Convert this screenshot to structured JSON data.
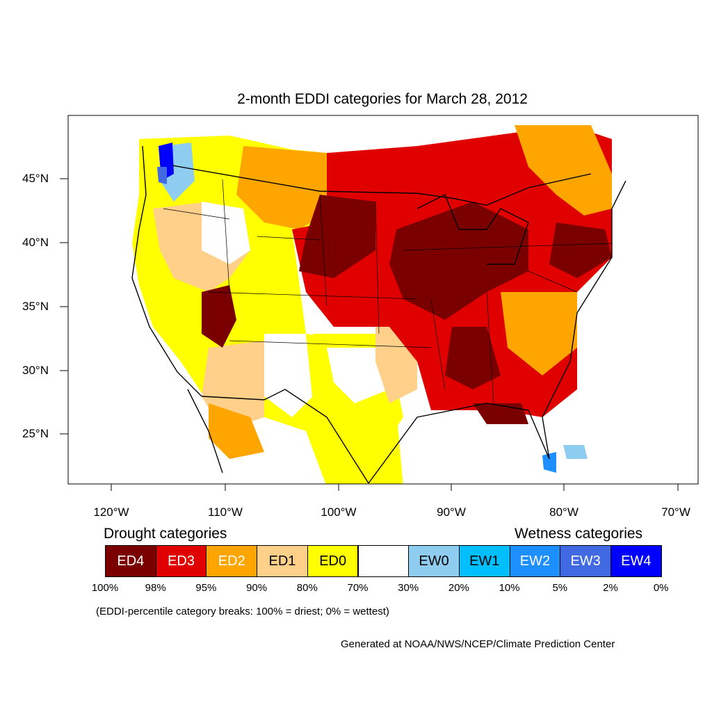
{
  "title": "2-month EDDI categories for March 28, 2012",
  "axes": {
    "y_labels": [
      "45°N",
      "40°N",
      "35°N",
      "30°N",
      "25°N"
    ],
    "x_labels": [
      "120°W",
      "110°W",
      "100°W",
      "90°W",
      "80°W",
      "70°W"
    ]
  },
  "legend": {
    "drought_heading": "Drought categories",
    "wetness_heading": "Wetness categories",
    "categories": [
      {
        "label": "ED4",
        "color": "#7a0000",
        "text_color": "#ffffff"
      },
      {
        "label": "ED3",
        "color": "#e00000",
        "text_color": "#ffffff"
      },
      {
        "label": "ED2",
        "color": "#ffa500",
        "text_color": "#ffffff"
      },
      {
        "label": "ED1",
        "color": "#ffd08a",
        "text_color": "#000000"
      },
      {
        "label": "ED0",
        "color": "#ffff00",
        "text_color": "#000000"
      },
      {
        "label": "",
        "color": "#ffffff",
        "text_color": "#000000"
      },
      {
        "label": "EW0",
        "color": "#8fcdf0",
        "text_color": "#000000"
      },
      {
        "label": "EW1",
        "color": "#00bfff",
        "text_color": "#000000"
      },
      {
        "label": "EW2",
        "color": "#1e8fff",
        "text_color": "#ffffff"
      },
      {
        "label": "EW3",
        "color": "#4169e1",
        "text_color": "#ffffff"
      },
      {
        "label": "EW4",
        "color": "#0000ff",
        "text_color": "#ffffff"
      }
    ],
    "breaks": [
      "100%",
      "98%",
      "95%",
      "90%",
      "80%",
      "70%",
      "30%",
      "20%",
      "10%",
      "5%",
      "2%",
      "0%"
    ]
  },
  "note": "(EDDI-percentile category breaks: 100% = driest; 0% = wettest)",
  "credit": "Generated at NOAA/NWS/NCEP/Climate Prediction Center"
}
